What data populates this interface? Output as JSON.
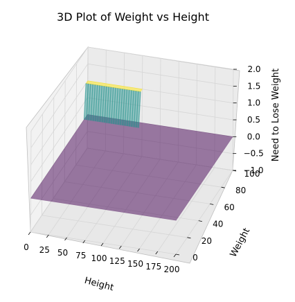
{
  "chart_data": {
    "type": "surface",
    "title": "3D Plot of Weight vs Height",
    "xlabel": "Height",
    "ylabel": "Weight",
    "zlabel": "Need to Lose Weight",
    "xlim": [
      0,
      200
    ],
    "ylim": [
      0,
      100
    ],
    "zlim": [
      -1.0,
      2.0
    ],
    "x_ticks": [
      0,
      25,
      50,
      75,
      100,
      125,
      150,
      175,
      200
    ],
    "y_ticks": [
      0,
      20,
      40,
      60,
      80,
      100
    ],
    "z_ticks": [
      -1.0,
      -0.5,
      0.0,
      0.5,
      1.0,
      1.5,
      2.0
    ],
    "z_tick_labels": [
      "−1.0",
      "−0.5",
      "0.0",
      "0.5",
      "1.0",
      "1.5",
      "2.0"
    ],
    "surface": {
      "description_of_values": "Binary surface: z = 1 for Weight at the top of the range (about 100) with Height below about 75; z = 0 elsewhere",
      "regions": [
        {
          "x_range": [
            0,
            75
          ],
          "y_range": [
            97,
            100
          ],
          "z": 1
        },
        {
          "x_range": [
            0,
            200
          ],
          "y_range": [
            0,
            100
          ],
          "z": 0
        }
      ],
      "colormap": "viridis",
      "alpha": 0.5
    },
    "grid": true,
    "colors": {
      "low": "#440154",
      "mid": "#21918c",
      "high": "#fde725",
      "pane": "#f2f2f2",
      "grid": "#d9d9d9"
    }
  }
}
